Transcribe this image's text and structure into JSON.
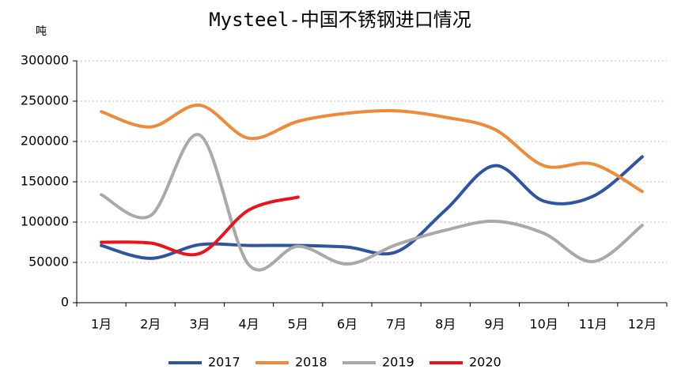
{
  "chart_data": {
    "type": "line",
    "title": "Mysteel-中国不锈钢进口情况",
    "y_label": "吨",
    "categories": [
      "1月",
      "2月",
      "3月",
      "4月",
      "5月",
      "6月",
      "7月",
      "8月",
      "9月",
      "10月",
      "11月",
      "12月"
    ],
    "series": [
      {
        "name": "2017",
        "color": "#2f55a0",
        "values": [
          71000,
          55000,
          72000,
          71000,
          71000,
          69000,
          63000,
          115000,
          170000,
          126000,
          132000,
          181000
        ]
      },
      {
        "name": "2018",
        "color": "#ee8a3a",
        "values": [
          237000,
          218000,
          245000,
          204000,
          225000,
          235000,
          238000,
          230000,
          215000,
          170000,
          172000,
          138000
        ]
      },
      {
        "name": "2019",
        "color": "#a9a9a9",
        "values": [
          134000,
          108000,
          208000,
          47000,
          70000,
          48000,
          72000,
          90000,
          101000,
          86000,
          51000,
          96000
        ]
      },
      {
        "name": "2020",
        "color": "#e8141b",
        "values": [
          75000,
          74000,
          61000,
          115000,
          131000,
          null,
          null,
          null,
          null,
          null,
          null,
          null
        ]
      }
    ],
    "ylim": [
      0,
      300000
    ],
    "yticks": [
      0,
      50000,
      100000,
      150000,
      200000,
      250000,
      300000
    ],
    "grid": true,
    "smooth": true,
    "legend": "bottom"
  }
}
